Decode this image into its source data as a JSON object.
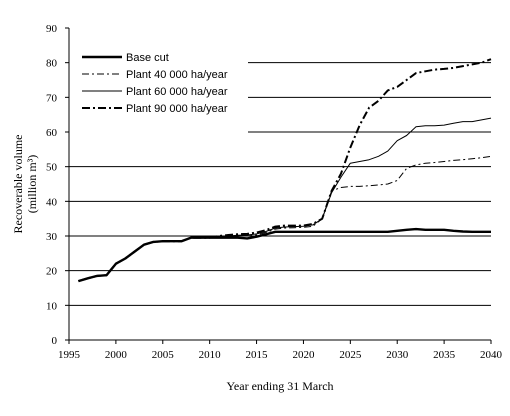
{
  "chart_data": {
    "type": "line",
    "xlabel": "Year ending 31 March",
    "ylabel_line1": "Recoverable volume",
    "ylabel_line2": "(million m³)",
    "xlim": [
      1995,
      2040
    ],
    "ylim": [
      0,
      90
    ],
    "x_ticks": [
      1995,
      2000,
      2005,
      2010,
      2015,
      2020,
      2025,
      2030,
      2035,
      2040
    ],
    "y_ticks": [
      0,
      10,
      20,
      30,
      40,
      50,
      60,
      70,
      80,
      90
    ],
    "grid": "horizontal",
    "legend_position": "top-left",
    "series": [
      {
        "name": "Base cut",
        "style": "thick-solid",
        "x": [
          1996,
          1997,
          1998,
          1999,
          2000,
          2001,
          2002,
          2003,
          2004,
          2005,
          2006,
          2007,
          2008,
          2009,
          2010,
          2011,
          2012,
          2013,
          2014,
          2015,
          2016,
          2017,
          2018,
          2019,
          2020,
          2021,
          2022,
          2023,
          2024,
          2025,
          2026,
          2027,
          2028,
          2029,
          2030,
          2031,
          2032,
          2033,
          2034,
          2035,
          2036,
          2037,
          2038,
          2039,
          2040
        ],
        "y": [
          17,
          17.8,
          18.5,
          18.7,
          22,
          23.5,
          25.5,
          27.5,
          28.3,
          28.5,
          28.5,
          28.5,
          29.5,
          29.5,
          29.5,
          29.5,
          29.5,
          29.5,
          29.3,
          29.8,
          30.5,
          31.2,
          31.2,
          31.2,
          31.2,
          31.2,
          31.2,
          31.2,
          31.2,
          31.2,
          31.2,
          31.2,
          31.2,
          31.2,
          31.5,
          31.8,
          32,
          31.8,
          31.8,
          31.8,
          31.5,
          31.3,
          31.2,
          31.2,
          31.2
        ]
      },
      {
        "name": "Plant 40 000 ha/year",
        "style": "dash-dot",
        "x": [
          1996,
          1997,
          1998,
          1999,
          2000,
          2001,
          2002,
          2003,
          2004,
          2005,
          2006,
          2007,
          2008,
          2009,
          2010,
          2011,
          2012,
          2013,
          2014,
          2015,
          2016,
          2017,
          2018,
          2019,
          2020,
          2021,
          2022,
          2023,
          2024,
          2025,
          2026,
          2027,
          2028,
          2029,
          2030,
          2031,
          2032,
          2033,
          2034,
          2035,
          2036,
          2037,
          2038,
          2039,
          2040
        ],
        "y": [
          17,
          17.8,
          18.5,
          18.7,
          22,
          23.5,
          25.5,
          27.5,
          28.3,
          28.5,
          28.5,
          28.5,
          29.5,
          29.5,
          29.5,
          29.7,
          29.8,
          30,
          30,
          30.3,
          31,
          32,
          32.3,
          32.4,
          32.5,
          32.8,
          35,
          43,
          44,
          44.3,
          44.3,
          44.5,
          44.7,
          45,
          46,
          49.5,
          50.5,
          51,
          51.2,
          51.5,
          51.8,
          52,
          52.3,
          52.6,
          53
        ]
      },
      {
        "name": "Plant 60 000 ha/year",
        "style": "thin-solid",
        "x": [
          1996,
          1997,
          1998,
          1999,
          2000,
          2001,
          2002,
          2003,
          2004,
          2005,
          2006,
          2007,
          2008,
          2009,
          2010,
          2011,
          2012,
          2013,
          2014,
          2015,
          2016,
          2017,
          2018,
          2019,
          2020,
          2021,
          2022,
          2023,
          2024,
          2025,
          2026,
          2027,
          2028,
          2029,
          2030,
          2031,
          2032,
          2033,
          2034,
          2035,
          2036,
          2037,
          2038,
          2039,
          2040
        ],
        "y": [
          17,
          17.8,
          18.5,
          18.7,
          22,
          23.5,
          25.5,
          27.5,
          28.3,
          28.5,
          28.5,
          28.5,
          29.5,
          29.5,
          29.5,
          29.8,
          30,
          30.2,
          30.3,
          30.6,
          31.3,
          32.3,
          32.6,
          32.7,
          32.8,
          33.2,
          35,
          42.5,
          47,
          51,
          51.5,
          52,
          53,
          54.5,
          57.5,
          59,
          61.5,
          61.8,
          61.8,
          62,
          62.5,
          63,
          63,
          63.5,
          64
        ]
      },
      {
        "name": "Plant 90 000 ha/year",
        "style": "dash-dot-bold",
        "x": [
          1996,
          1997,
          1998,
          1999,
          2000,
          2001,
          2002,
          2003,
          2004,
          2005,
          2006,
          2007,
          2008,
          2009,
          2010,
          2011,
          2012,
          2013,
          2014,
          2015,
          2016,
          2017,
          2018,
          2019,
          2020,
          2021,
          2022,
          2023,
          2024,
          2025,
          2026,
          2027,
          2028,
          2029,
          2030,
          2031,
          2032,
          2033,
          2034,
          2035,
          2036,
          2037,
          2038,
          2039,
          2040
        ],
        "y": [
          17,
          17.8,
          18.5,
          18.7,
          22,
          23.5,
          25.5,
          27.5,
          28.3,
          28.5,
          28.5,
          28.5,
          29.5,
          29.5,
          29.5,
          30,
          30.3,
          30.5,
          30.6,
          31,
          31.7,
          32.7,
          33,
          33,
          33,
          33.5,
          35,
          43,
          48,
          55.5,
          62,
          67,
          69,
          72,
          73,
          75,
          77,
          77.5,
          78,
          78.2,
          78.5,
          79,
          79.5,
          80,
          81
        ]
      }
    ]
  }
}
